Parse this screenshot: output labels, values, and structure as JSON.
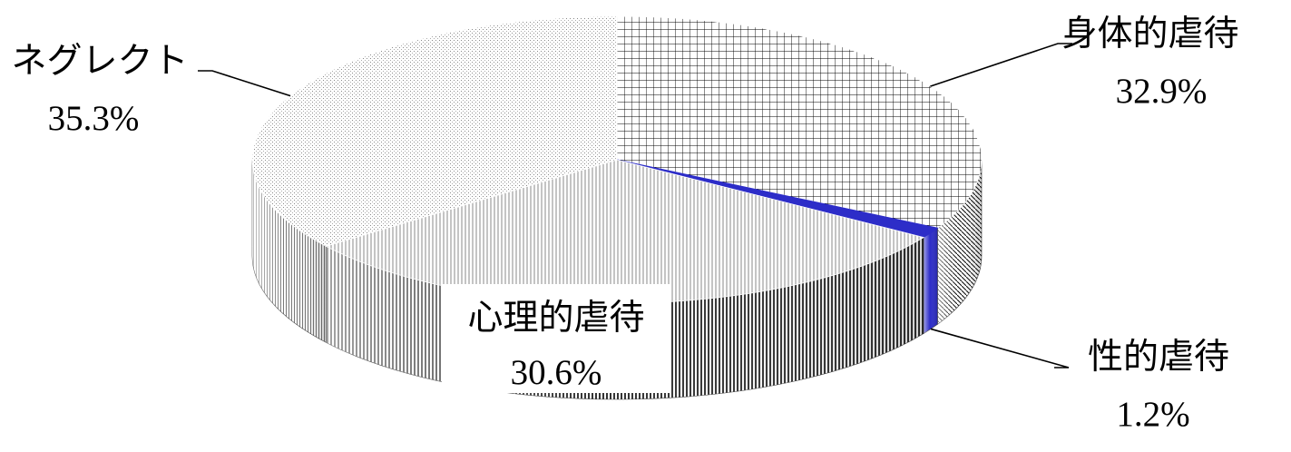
{
  "chart_data": {
    "type": "pie",
    "style": "3d",
    "categories": [
      "身体的虐待",
      "性的虐待",
      "心理的虐待",
      "ネグレクト"
    ],
    "values": [
      32.9,
      1.2,
      30.6,
      35.3
    ],
    "value_labels": [
      "32.9%",
      "1.2%",
      "30.6%",
      "35.3%"
    ],
    "start": "12 o'clock",
    "direction": "clockwise",
    "fills": [
      "crosshatch",
      "solid",
      "vertical-lines",
      "fine-dots"
    ],
    "colors": {
      "ink": "#000000",
      "accent": "#2d2dc8",
      "background": "#ffffff"
    },
    "legend": "none"
  }
}
